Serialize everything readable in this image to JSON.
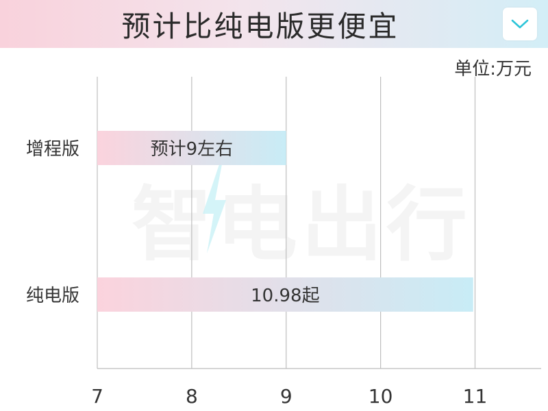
{
  "header": {
    "title": "预计比纯电版更便宜",
    "dropdown_icon": "chevron-down-icon"
  },
  "unit_label": "单位:万元",
  "watermark": {
    "text": "智电出行",
    "icon": "lightning-bolt-icon"
  },
  "colors": {
    "bar_start": "#fbd3dd",
    "bar_end": "#c8ecf6",
    "grid": "#bdbdbd",
    "accent": "#2bc4d8"
  },
  "chart_data": {
    "type": "bar",
    "orientation": "horizontal",
    "categories": [
      "增程版",
      "纯电版"
    ],
    "values": [
      9,
      10.98
    ],
    "data_labels": [
      "预计9左右",
      "10.98起"
    ],
    "xlim": [
      7,
      11.7
    ],
    "xticks": [
      7,
      8,
      9,
      10,
      11
    ],
    "xtick_labels": [
      "7",
      "8",
      "9",
      "10",
      "11"
    ],
    "grid": true,
    "legend": "none"
  }
}
